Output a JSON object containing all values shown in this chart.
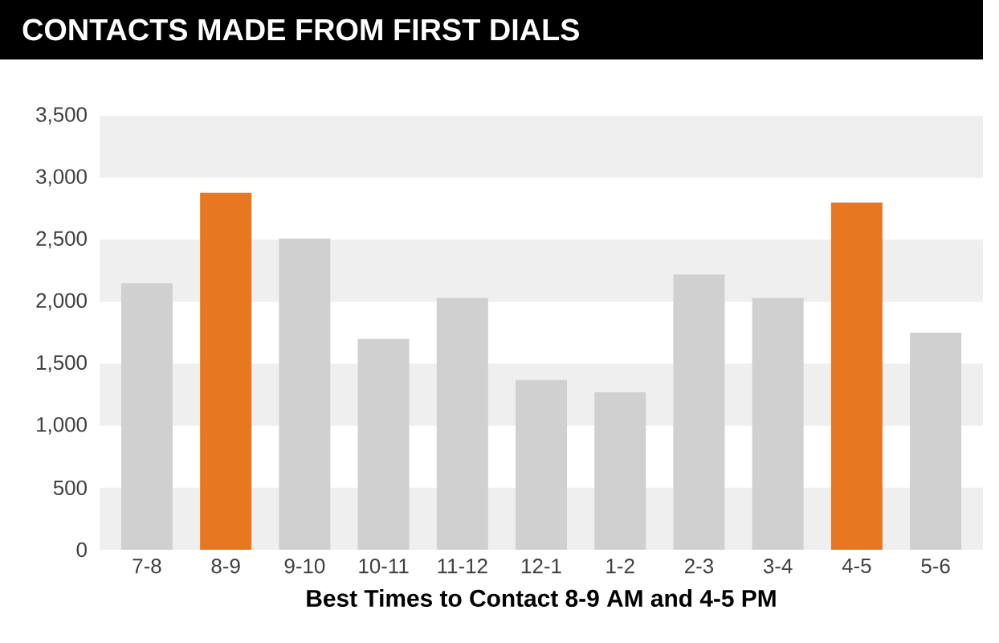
{
  "chart_data": {
    "type": "bar",
    "title": "CONTACTS MADE FROM FIRST DIALS",
    "xlabel": "Best Times to Contact 8-9 AM and 4-5 PM",
    "categories": [
      "7-8",
      "8-9",
      "9-10",
      "10-11",
      "11-12",
      "12-1",
      "1-2",
      "2-3",
      "3-4",
      "4-5",
      "5-6"
    ],
    "values": [
      2150,
      2880,
      2510,
      1700,
      2030,
      1370,
      1270,
      2220,
      2030,
      2800,
      1750
    ],
    "colors": [
      "#d0d0d0",
      "#e87722",
      "#d0d0d0",
      "#d0d0d0",
      "#d0d0d0",
      "#d0d0d0",
      "#d0d0d0",
      "#d0d0d0",
      "#d0d0d0",
      "#e87722",
      "#d0d0d0"
    ],
    "ylim": [
      0,
      3500
    ],
    "yticks": [
      0,
      500,
      {
        "value": 1000,
        "label": "1,000"
      },
      {
        "value": 1500,
        "label": "1,500"
      },
      {
        "value": 2000,
        "label": "2,000"
      },
      {
        "value": 2500,
        "label": "2,500"
      },
      {
        "value": 3000,
        "label": "3,000"
      },
      {
        "value": 3500,
        "label": "3,500"
      }
    ],
    "bands": [
      {
        "axis": "y",
        "from": 0,
        "to": 500,
        "color": "#efefef"
      },
      {
        "axis": "y",
        "from": 1000,
        "to": 1500,
        "color": "#efefef"
      },
      {
        "axis": "y",
        "from": 2000,
        "to": 2500,
        "color": "#efefef"
      },
      {
        "axis": "y",
        "from": 3000,
        "to": 3500,
        "color": "#efefef"
      }
    ],
    "grid": false
  }
}
